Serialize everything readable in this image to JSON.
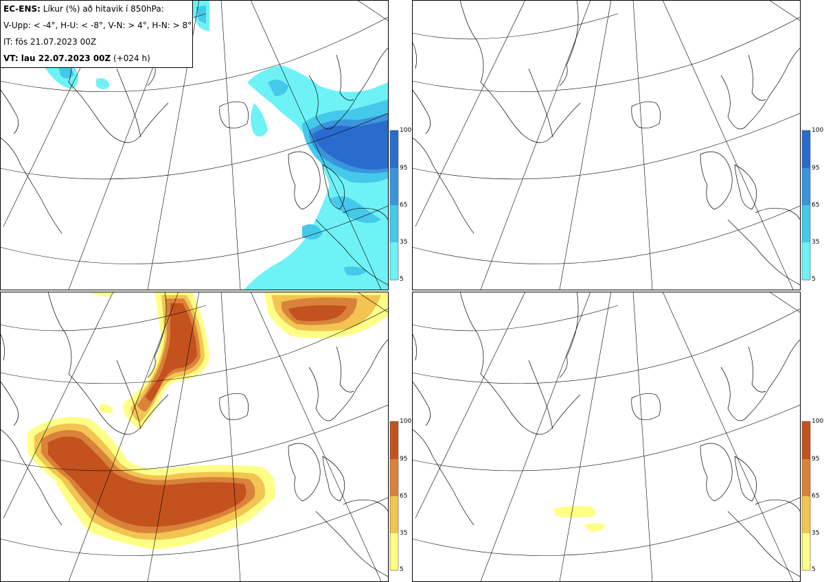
{
  "header": {
    "model": "EC-ENS:",
    "title": "Líkur (%) að hitavik í 850hPa:",
    "legend": "V-Upp: < -4°, H-U: < -8°, V-N: > 4°, H-N: > 8°",
    "init_time": "IT: fös 21.07.2023 00Z",
    "valid_label": "VT: lau 22.07.2023 00Z",
    "lead": "(+024 h)"
  },
  "colorbars": {
    "ticks": [
      "100",
      "95",
      "65",
      "35",
      "5"
    ],
    "cold_colors": [
      "#6ff2f6",
      "#45c9ea",
      "#3a95dd",
      "#2a6ccd"
    ],
    "warm_colors": [
      "#ffff88",
      "#f2c452",
      "#d9833a",
      "#c4521f"
    ]
  },
  "panels": [
    {
      "id": "upper-left",
      "variable": "cold",
      "threshold": "< -4°",
      "scheme": "blue"
    },
    {
      "id": "upper-right",
      "variable": "cold",
      "threshold": "< -8°",
      "scheme": "blue"
    },
    {
      "id": "lower-left",
      "variable": "warm",
      "threshold": "> 4°",
      "scheme": "orange"
    },
    {
      "id": "lower-right",
      "variable": "warm",
      "threshold": "> 8°",
      "scheme": "orange"
    }
  ]
}
